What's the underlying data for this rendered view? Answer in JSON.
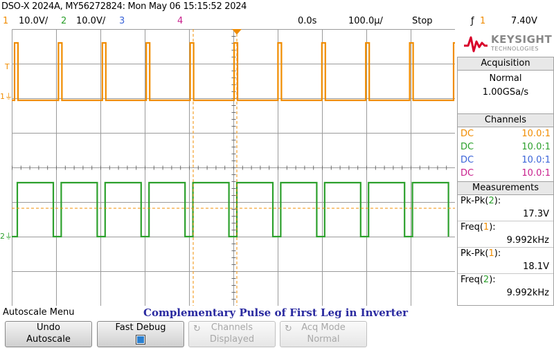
{
  "header": {
    "title": "DSO-X 2024A, MY56272824: Mon May 06 15:15:52 2024"
  },
  "status": {
    "ch1_num": "1",
    "ch1_scale": "10.0V/",
    "ch2_num": "2",
    "ch2_scale": "10.0V/",
    "ch3_num": "3",
    "ch4_num": "4",
    "time_delay": "0.0s",
    "time_scale": "100.0µ/",
    "run_state": "Stop",
    "trigger_source": "1",
    "trigger_level": "7.40V"
  },
  "colors": {
    "ch1": "#f08c00",
    "ch2": "#2ca02c",
    "ch3": "#3a64d8",
    "ch4": "#c81e8c"
  },
  "logo": {
    "brand": "KEYSIGHT",
    "sub": "TECHNOLOGIES"
  },
  "acquisition": {
    "header": "Acquisition",
    "mode": "Normal",
    "rate": "1.00GSa/s"
  },
  "channels": {
    "header": "Channels",
    "items": [
      {
        "coupling": "DC",
        "probe": "10.0:1"
      },
      {
        "coupling": "DC",
        "probe": "10.0:1"
      },
      {
        "coupling": "DC",
        "probe": "10.0:1"
      },
      {
        "coupling": "DC",
        "probe": "10.0:1"
      }
    ]
  },
  "measurements": {
    "header": "Measurements",
    "items": [
      {
        "label": "Pk-Pk(2):",
        "value": "17.3V"
      },
      {
        "label": "Freq(1):",
        "value": "9.992kHz"
      },
      {
        "label": "Pk-Pk(1):",
        "value": "18.1V"
      },
      {
        "label": "Freq(2):",
        "value": "9.992kHz"
      }
    ]
  },
  "menu": {
    "title": "Autoscale Menu",
    "caption": "Complementary Pulse of First Leg in Inverter",
    "softkeys": [
      {
        "line1": "Undo",
        "line2": "Autoscale"
      },
      {
        "line1": "Fast Debug",
        "line2": ""
      },
      {
        "line1": "Channels",
        "line2": "Displayed"
      },
      {
        "line1": "Acq Mode",
        "line2": "Normal"
      }
    ]
  },
  "markers": {
    "ch1": "1",
    "ch2": "2",
    "trigger": "T"
  }
}
